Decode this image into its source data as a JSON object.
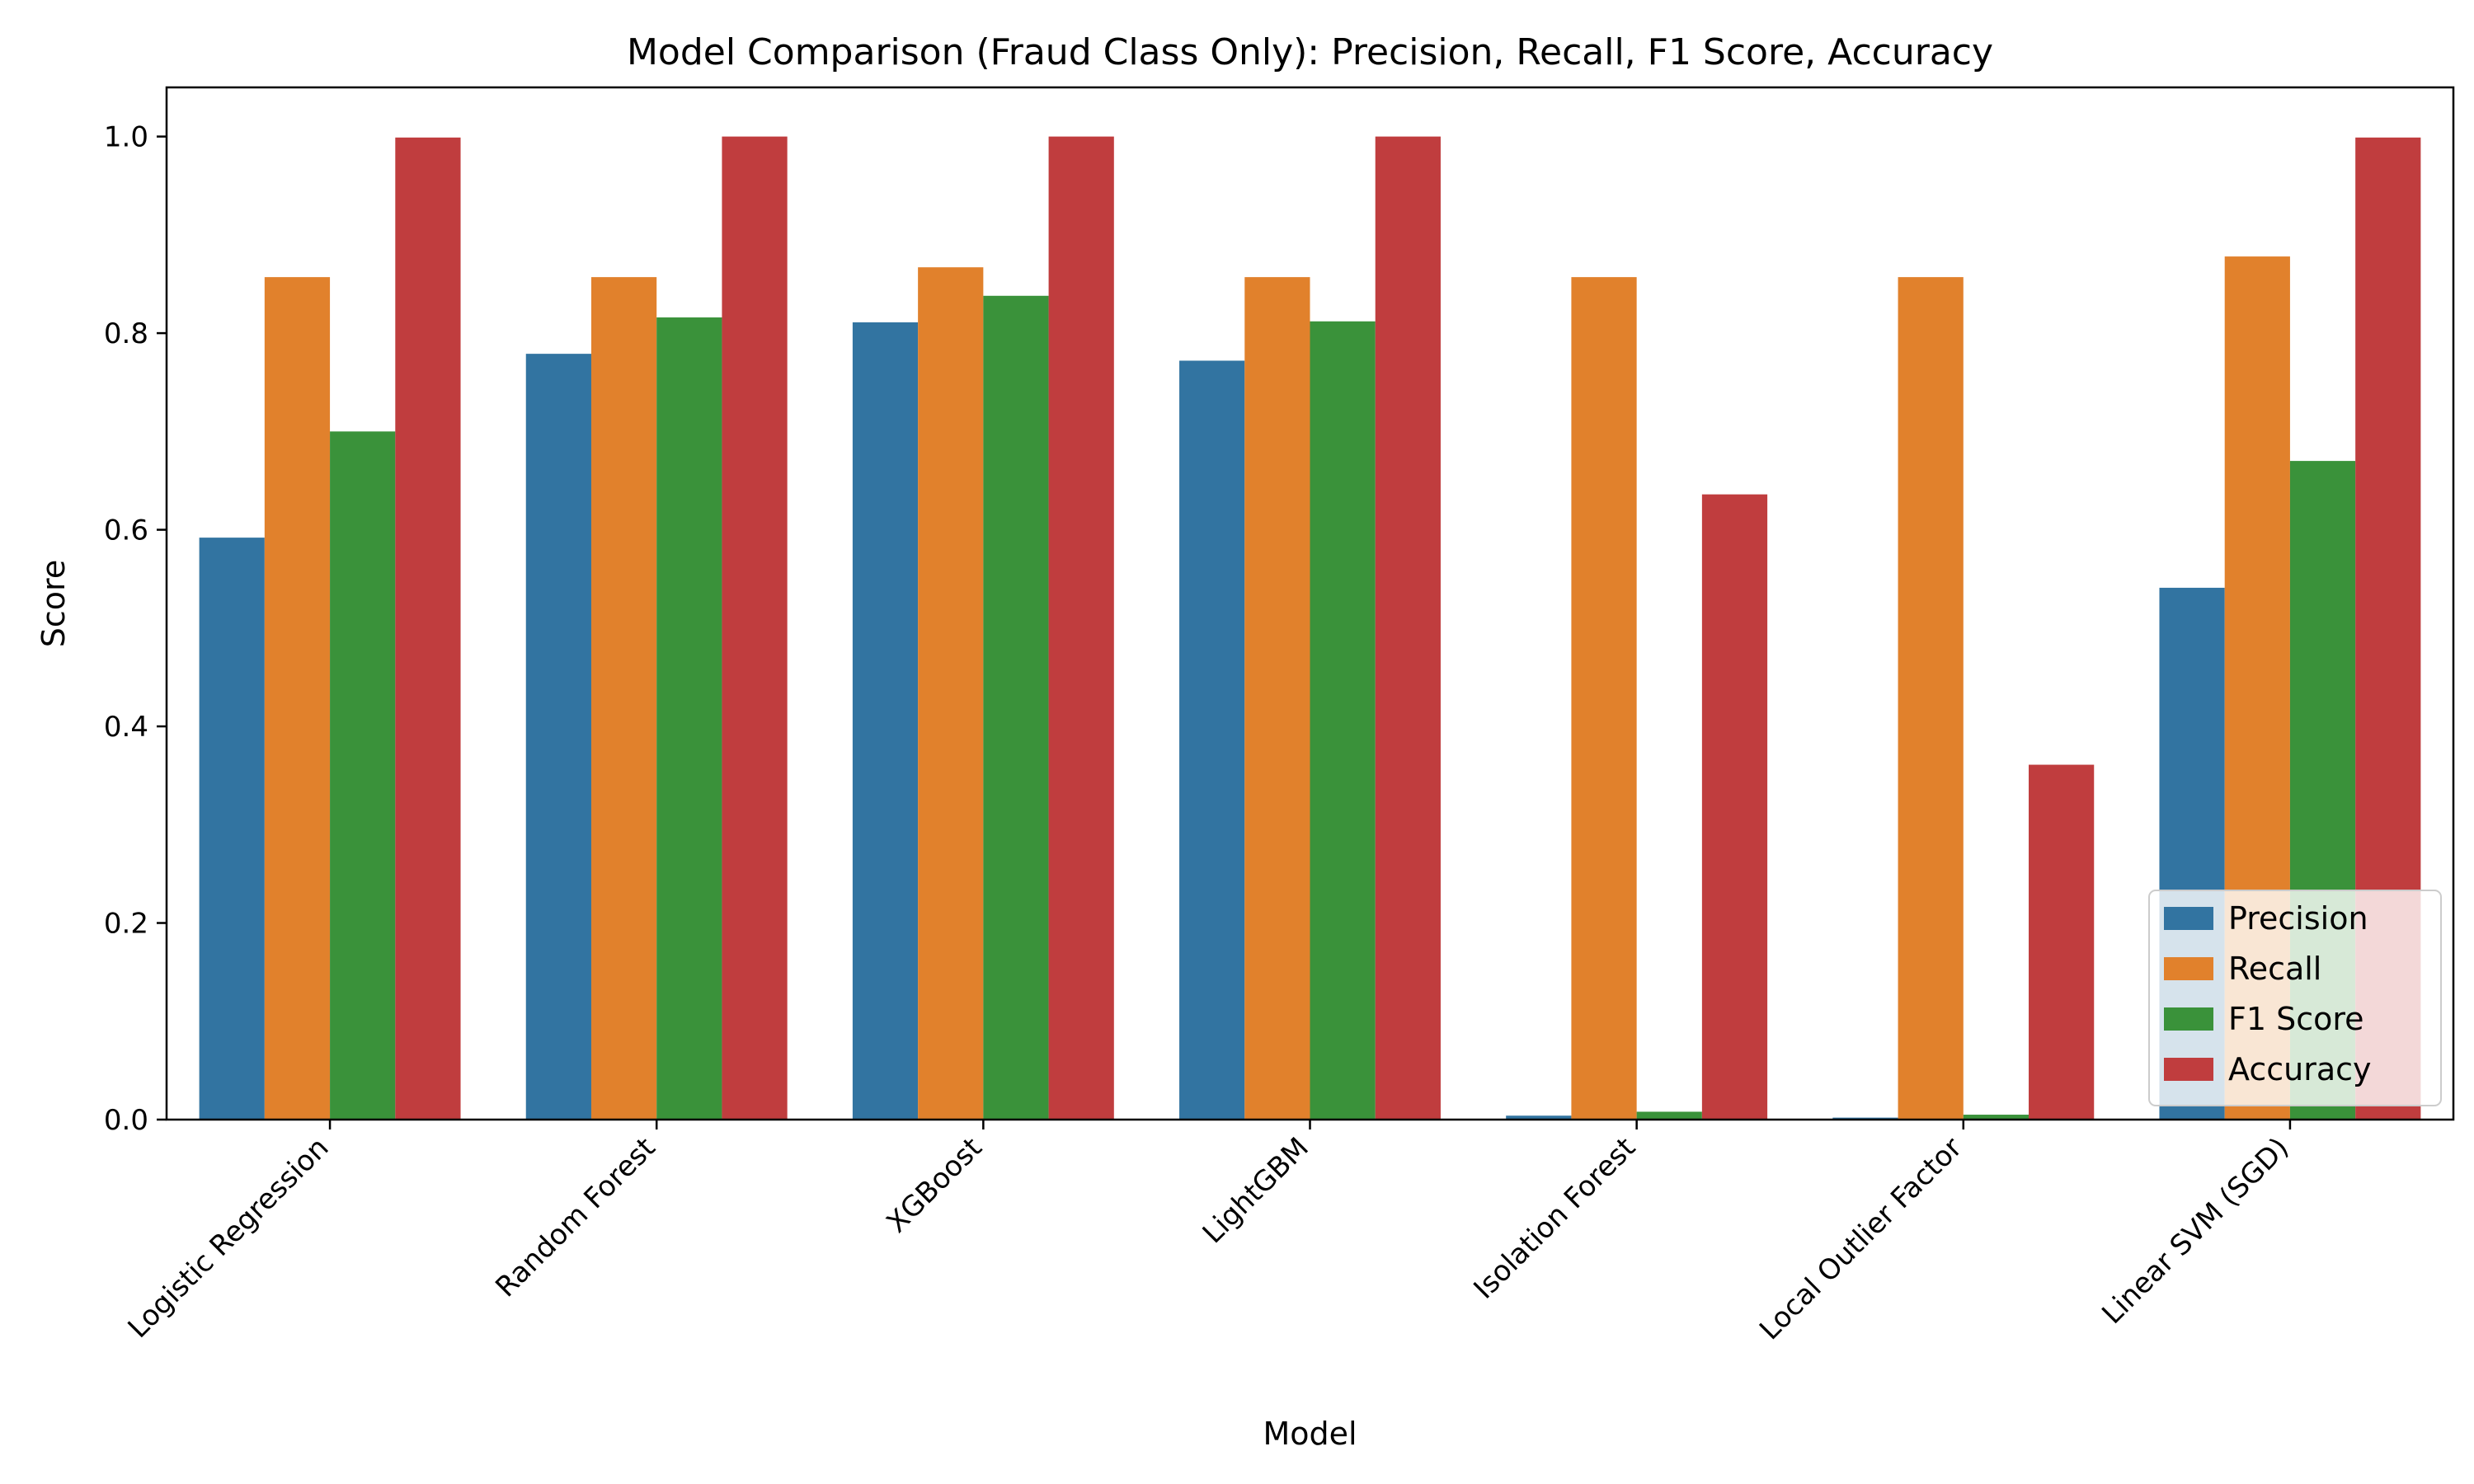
{
  "chart_data": {
    "type": "bar",
    "title": "Model Comparison (Fraud Class Only): Precision, Recall, F1 Score, Accuracy",
    "xlabel": "Model",
    "ylabel": "Score",
    "ylim": [
      0,
      1.05
    ],
    "yticks": [
      "0.0",
      "0.2",
      "0.4",
      "0.6",
      "0.8",
      "1.0"
    ],
    "categories": [
      "Logistic Regression",
      "Random Forest",
      "XGBoost",
      "LightGBM",
      "Isolation Forest",
      "Local Outlier Factor",
      "Linear SVM (SGD)"
    ],
    "series": [
      {
        "name": "Precision",
        "color": "#3274a1",
        "values": [
          0.592,
          0.779,
          0.811,
          0.772,
          0.004,
          0.002,
          0.541
        ]
      },
      {
        "name": "Recall",
        "color": "#e1812c",
        "values": [
          0.857,
          0.857,
          0.867,
          0.857,
          0.857,
          0.857,
          0.878
        ]
      },
      {
        "name": "F1 Score",
        "color": "#3a923a",
        "values": [
          0.7,
          0.816,
          0.838,
          0.812,
          0.008,
          0.005,
          0.67
        ]
      },
      {
        "name": "Accuracy",
        "color": "#c03d3e",
        "values": [
          0.999,
          1.0,
          1.0,
          1.0,
          0.636,
          0.361,
          0.999
        ]
      }
    ],
    "grid": false,
    "legend_position": "lower-right"
  }
}
